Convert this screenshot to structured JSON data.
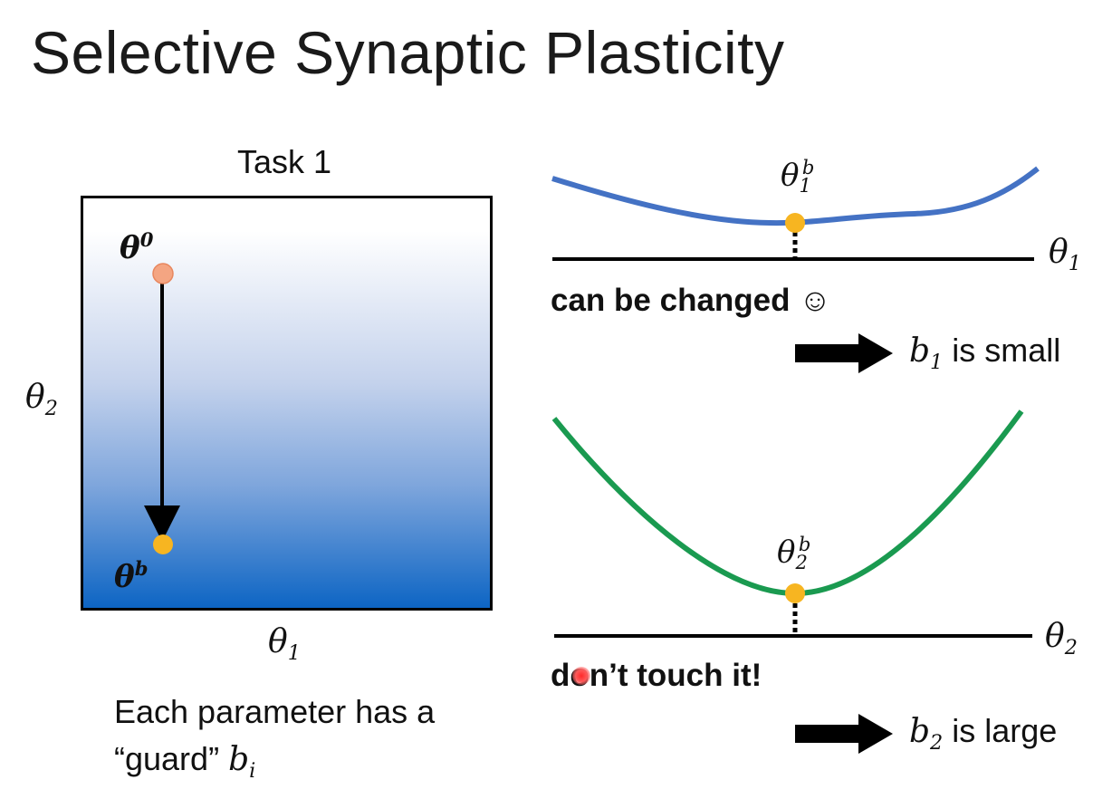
{
  "slide": {
    "title": "Selective Synaptic Plasticity"
  },
  "left_panel": {
    "task_label": "Task 1",
    "start_point_label": "θ",
    "start_point_sup": "0",
    "end_point_label": "θ",
    "end_point_sup": "b",
    "y_axis_label": "θ",
    "y_axis_sub": "2",
    "x_axis_label": "θ",
    "x_axis_sub": "1",
    "caption_line1": "Each parameter has a",
    "caption_line2": "“guard”",
    "caption_var": "b",
    "caption_var_sub": "i",
    "gradient_top_color": "#ffffff",
    "gradient_bottom_color": "#0d65c4",
    "start_point_color": "#f4a582",
    "end_point_color": "#f7b521"
  },
  "top_curve": {
    "point_label": "θ",
    "point_sub": "1",
    "point_sup": "b",
    "axis_label": "θ",
    "axis_sub": "1",
    "callout": "can be changed ☺",
    "result_var": "b",
    "result_sub": "1",
    "result_text": "is small",
    "curve_color": "#4472c4",
    "point_color": "#f7b521"
  },
  "bottom_curve": {
    "point_label": "θ",
    "point_sub": "2",
    "point_sup": "b",
    "axis_label": "θ",
    "axis_sub": "2",
    "callout": "don’t touch it!",
    "result_var": "b",
    "result_sub": "2",
    "result_text": "is large",
    "curve_color": "#1a9a50",
    "point_color": "#f7b521"
  }
}
